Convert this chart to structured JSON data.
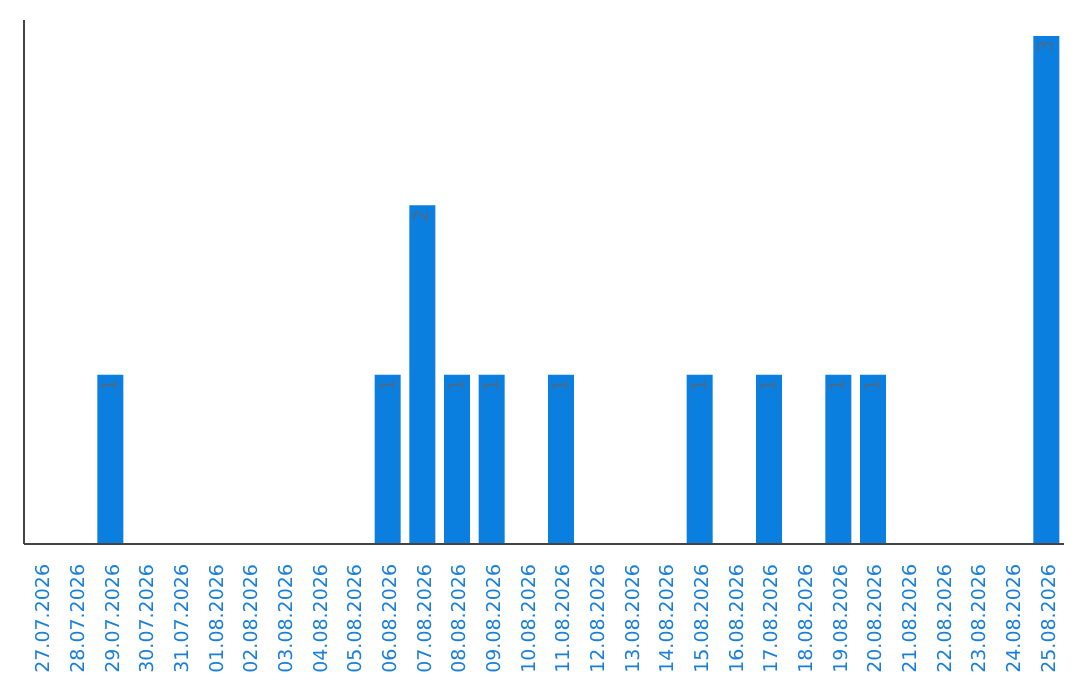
{
  "chart_data": {
    "type": "bar",
    "categories": [
      "27.07.2026",
      "28.07.2026",
      "29.07.2026",
      "30.07.2026",
      "31.07.2026",
      "01.08.2026",
      "02.08.2026",
      "03.08.2026",
      "04.08.2026",
      "05.08.2026",
      "06.08.2026",
      "07.08.2026",
      "08.08.2026",
      "09.08.2026",
      "10.08.2026",
      "11.08.2026",
      "12.08.2026",
      "13.08.2026",
      "14.08.2026",
      "15.08.2026",
      "16.08.2026",
      "17.08.2026",
      "18.08.2026",
      "19.08.2026",
      "20.08.2026",
      "21.08.2026",
      "22.08.2026",
      "23.08.2026",
      "24.08.2026",
      "25.08.2026"
    ],
    "values": [
      0,
      0,
      1,
      0,
      0,
      0,
      0,
      0,
      0,
      0,
      1,
      2,
      1,
      1,
      0,
      1,
      0,
      0,
      0,
      1,
      0,
      1,
      0,
      1,
      1,
      0,
      0,
      0,
      0,
      3
    ],
    "value_labels": [
      null,
      null,
      "1",
      null,
      null,
      null,
      null,
      null,
      null,
      null,
      "1",
      "2",
      "1",
      "1",
      null,
      "1",
      null,
      null,
      null,
      "1",
      null,
      "1",
      null,
      "1",
      "1",
      null,
      null,
      null,
      null,
      "3"
    ],
    "color": "#0a7fe0"
  }
}
